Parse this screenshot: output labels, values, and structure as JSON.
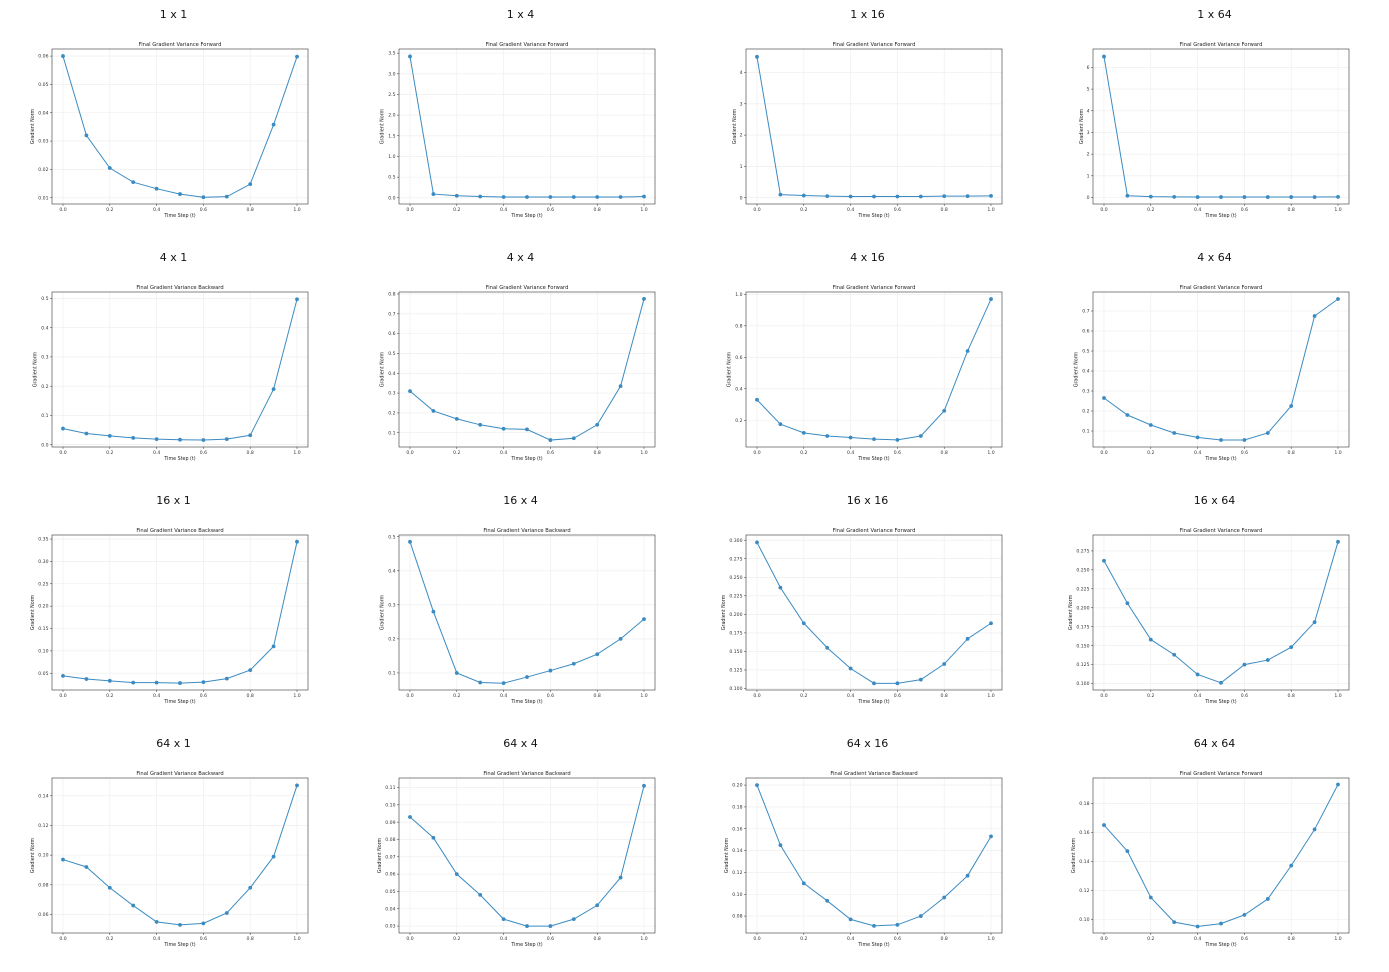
{
  "figure": {
    "x_tick_labels": [
      "0.0",
      "0.2",
      "0.4",
      "0.6",
      "0.8",
      "1.0"
    ],
    "xlabel": "Time Step (t)",
    "ylabel": "Gradient Norm",
    "line_color": "#3b8bc2"
  },
  "chart_data": [
    {
      "type": "line",
      "panel_title": "1 x 1",
      "title": "Final Gradient Variance Forward",
      "xlabel": "Time Step (t)",
      "ylabel": "Gradient Norm",
      "x": [
        0.0,
        0.1,
        0.2,
        0.3,
        0.4,
        0.5,
        0.6,
        0.7,
        0.8,
        0.9,
        1.0
      ],
      "y": [
        0.06,
        0.032,
        0.0205,
        0.0155,
        0.0132,
        0.0113,
        0.0102,
        0.0104,
        0.0148,
        0.0358,
        0.0598
      ],
      "ylim": [
        0.0078,
        0.0625
      ],
      "yticks": [
        0.01,
        0.02,
        0.03,
        0.04,
        0.05,
        0.06
      ],
      "ytick_labels": [
        "0.01",
        "0.02",
        "0.03",
        "0.04",
        "0.05",
        "0.06"
      ]
    },
    {
      "type": "line",
      "panel_title": "1 x 4",
      "title": "Final Gradient Variance Forward",
      "xlabel": "Time Step (t)",
      "ylabel": "Gradient Norm",
      "x": [
        0.0,
        0.1,
        0.2,
        0.3,
        0.4,
        0.5,
        0.6,
        0.7,
        0.8,
        0.9,
        1.0
      ],
      "y": [
        3.42,
        0.09,
        0.05,
        0.03,
        0.02,
        0.02,
        0.02,
        0.02,
        0.02,
        0.02,
        0.03
      ],
      "ylim": [
        -0.15,
        3.6
      ],
      "yticks": [
        0.0,
        0.5,
        1.0,
        1.5,
        2.0,
        2.5,
        3.0,
        3.5
      ],
      "ytick_labels": [
        "0.0",
        "0.5",
        "1.0",
        "1.5",
        "2.0",
        "2.5",
        "3.0",
        "3.5"
      ]
    },
    {
      "type": "line",
      "panel_title": "1 x 16",
      "title": "Final Gradient Variance Forward",
      "xlabel": "Time Step (t)",
      "ylabel": "Gradient Norm",
      "x": [
        0.0,
        0.1,
        0.2,
        0.3,
        0.4,
        0.5,
        0.6,
        0.7,
        0.8,
        0.9,
        1.0
      ],
      "y": [
        4.5,
        0.1,
        0.07,
        0.05,
        0.04,
        0.04,
        0.04,
        0.04,
        0.05,
        0.05,
        0.06
      ],
      "ylim": [
        -0.2,
        4.75
      ],
      "yticks": [
        0,
        1,
        2,
        3,
        4
      ],
      "ytick_labels": [
        "0",
        "1",
        "2",
        "3",
        "4"
      ]
    },
    {
      "type": "line",
      "panel_title": "1 x 64",
      "title": "Final Gradient Variance Forward",
      "xlabel": "Time Step (t)",
      "ylabel": "Gradient Norm",
      "x": [
        0.0,
        0.1,
        0.2,
        0.3,
        0.4,
        0.5,
        0.6,
        0.7,
        0.8,
        0.9,
        1.0
      ],
      "y": [
        6.5,
        0.08,
        0.04,
        0.03,
        0.02,
        0.02,
        0.02,
        0.02,
        0.02,
        0.02,
        0.03
      ],
      "ylim": [
        -0.3,
        6.85
      ],
      "yticks": [
        0,
        1,
        2,
        3,
        4,
        5,
        6
      ],
      "ytick_labels": [
        "0",
        "1",
        "2",
        "3",
        "4",
        "5",
        "6"
      ]
    },
    {
      "type": "line",
      "panel_title": "4 x 1",
      "title": "Final Gradient Variance Backward",
      "xlabel": "Time Step (t)",
      "ylabel": "Gradient Norm",
      "x": [
        0.0,
        0.1,
        0.2,
        0.3,
        0.4,
        0.5,
        0.6,
        0.7,
        0.8,
        0.9,
        1.0
      ],
      "y": [
        0.055,
        0.038,
        0.03,
        0.023,
        0.019,
        0.017,
        0.016,
        0.019,
        0.032,
        0.19,
        0.497
      ],
      "ylim": [
        -0.008,
        0.522
      ],
      "yticks": [
        0.0,
        0.1,
        0.2,
        0.3,
        0.4,
        0.5
      ],
      "ytick_labels": [
        "0.0",
        "0.1",
        "0.2",
        "0.3",
        "0.4",
        "0.5"
      ]
    },
    {
      "type": "line",
      "panel_title": "4 x 4",
      "title": "Final Gradient Variance Forward",
      "xlabel": "Time Step (t)",
      "ylabel": "Gradient Norm",
      "x": [
        0.0,
        0.1,
        0.2,
        0.3,
        0.4,
        0.5,
        0.6,
        0.7,
        0.8,
        0.9,
        1.0
      ],
      "y": [
        0.31,
        0.21,
        0.17,
        0.14,
        0.12,
        0.117,
        0.063,
        0.072,
        0.14,
        0.335,
        0.775
      ],
      "ylim": [
        0.028,
        0.81
      ],
      "yticks": [
        0.1,
        0.2,
        0.3,
        0.4,
        0.5,
        0.6,
        0.7,
        0.8
      ],
      "ytick_labels": [
        "0.1",
        "0.2",
        "0.3",
        "0.4",
        "0.5",
        "0.6",
        "0.7",
        "0.8"
      ]
    },
    {
      "type": "line",
      "panel_title": "4 x 16",
      "title": "Final Gradient Variance Forward",
      "xlabel": "Time Step (t)",
      "ylabel": "Gradient Norm",
      "x": [
        0.0,
        0.1,
        0.2,
        0.3,
        0.4,
        0.5,
        0.6,
        0.7,
        0.8,
        0.9,
        1.0
      ],
      "y": [
        0.33,
        0.175,
        0.12,
        0.1,
        0.09,
        0.08,
        0.075,
        0.1,
        0.26,
        0.64,
        0.97
      ],
      "ylim": [
        0.03,
        1.015
      ],
      "yticks": [
        0.2,
        0.4,
        0.6,
        0.8,
        1.0
      ],
      "ytick_labels": [
        "0.2",
        "0.4",
        "0.6",
        "0.8",
        "1.0"
      ]
    },
    {
      "type": "line",
      "panel_title": "4 x 64",
      "title": "Final Gradient Variance Forward",
      "xlabel": "Time Step (t)",
      "ylabel": "Gradient Norm",
      "x": [
        0.0,
        0.1,
        0.2,
        0.3,
        0.4,
        0.5,
        0.6,
        0.7,
        0.8,
        0.9,
        1.0
      ],
      "y": [
        0.265,
        0.18,
        0.13,
        0.09,
        0.068,
        0.055,
        0.055,
        0.09,
        0.225,
        0.675,
        0.76
      ],
      "ylim": [
        0.02,
        0.795
      ],
      "yticks": [
        0.1,
        0.2,
        0.3,
        0.4,
        0.5,
        0.6,
        0.7
      ],
      "ytick_labels": [
        "0.1",
        "0.2",
        "0.3",
        "0.4",
        "0.5",
        "0.6",
        "0.7"
      ]
    },
    {
      "type": "line",
      "panel_title": "16 x 1",
      "title": "Final Gradient Variance Backward",
      "xlabel": "Time Step (t)",
      "ylabel": "Gradient Norm",
      "x": [
        0.0,
        0.1,
        0.2,
        0.3,
        0.4,
        0.5,
        0.6,
        0.7,
        0.8,
        0.9,
        1.0
      ],
      "y": [
        0.044,
        0.037,
        0.033,
        0.029,
        0.029,
        0.028,
        0.03,
        0.038,
        0.057,
        0.11,
        0.344
      ],
      "ylim": [
        0.0125,
        0.359
      ],
      "yticks": [
        0.05,
        0.1,
        0.15,
        0.2,
        0.25,
        0.3,
        0.35
      ],
      "ytick_labels": [
        "0.05",
        "0.10",
        "0.15",
        "0.20",
        "0.25",
        "0.30",
        "0.35"
      ]
    },
    {
      "type": "line",
      "panel_title": "16 x 4",
      "title": "Final Gradient Variance Backward",
      "xlabel": "Time Step (t)",
      "ylabel": "Gradient Norm",
      "x": [
        0.0,
        0.1,
        0.2,
        0.3,
        0.4,
        0.5,
        0.6,
        0.7,
        0.8,
        0.9,
        1.0
      ],
      "y": [
        0.485,
        0.28,
        0.1,
        0.072,
        0.07,
        0.088,
        0.107,
        0.127,
        0.155,
        0.2,
        0.258
      ],
      "ylim": [
        0.05,
        0.505
      ],
      "yticks": [
        0.1,
        0.2,
        0.3,
        0.4,
        0.5
      ],
      "ytick_labels": [
        "0.1",
        "0.2",
        "0.3",
        "0.4",
        "0.5"
      ]
    },
    {
      "type": "line",
      "panel_title": "16 x 16",
      "title": "Final Gradient Variance Forward",
      "xlabel": "Time Step (t)",
      "ylabel": "Gradient Norm",
      "x": [
        0.0,
        0.1,
        0.2,
        0.3,
        0.4,
        0.5,
        0.6,
        0.7,
        0.8,
        0.9,
        1.0
      ],
      "y": [
        0.297,
        0.236,
        0.188,
        0.155,
        0.127,
        0.107,
        0.107,
        0.112,
        0.133,
        0.167,
        0.188
      ],
      "ylim": [
        0.098,
        0.307
      ],
      "yticks": [
        0.1,
        0.125,
        0.15,
        0.175,
        0.2,
        0.225,
        0.25,
        0.275,
        0.3
      ],
      "ytick_labels": [
        "0.100",
        "0.125",
        "0.150",
        "0.175",
        "0.200",
        "0.225",
        "0.250",
        "0.275",
        "0.300"
      ]
    },
    {
      "type": "line",
      "panel_title": "16 x 64",
      "title": "Final Gradient Variance Forward",
      "xlabel": "Time Step (t)",
      "ylabel": "Gradient Norm",
      "x": [
        0.0,
        0.1,
        0.2,
        0.3,
        0.4,
        0.5,
        0.6,
        0.7,
        0.8,
        0.9,
        1.0
      ],
      "y": [
        0.262,
        0.206,
        0.158,
        0.138,
        0.112,
        0.101,
        0.125,
        0.131,
        0.148,
        0.181,
        0.287
      ],
      "ylim": [
        0.0915,
        0.296
      ],
      "yticks": [
        0.1,
        0.125,
        0.15,
        0.175,
        0.2,
        0.225,
        0.25,
        0.275
      ],
      "ytick_labels": [
        "0.100",
        "0.125",
        "0.150",
        "0.175",
        "0.200",
        "0.225",
        "0.250",
        "0.275"
      ]
    },
    {
      "type": "line",
      "panel_title": "64 x 1",
      "title": "Final Gradient Variance Backward",
      "xlabel": "Time Step (t)",
      "ylabel": "Gradient Norm",
      "x": [
        0.0,
        0.1,
        0.2,
        0.3,
        0.4,
        0.5,
        0.6,
        0.7,
        0.8,
        0.9,
        1.0
      ],
      "y": [
        0.097,
        0.092,
        0.078,
        0.066,
        0.055,
        0.053,
        0.054,
        0.061,
        0.078,
        0.099,
        0.147
      ],
      "ylim": [
        0.0475,
        0.152
      ],
      "yticks": [
        0.06,
        0.08,
        0.1,
        0.12,
        0.14
      ],
      "ytick_labels": [
        "0.06",
        "0.08",
        "0.10",
        "0.12",
        "0.14"
      ]
    },
    {
      "type": "line",
      "panel_title": "64 x 4",
      "title": "Final Gradient Variance Backward",
      "xlabel": "Time Step (t)",
      "ylabel": "Gradient Norm",
      "x": [
        0.0,
        0.1,
        0.2,
        0.3,
        0.4,
        0.5,
        0.6,
        0.7,
        0.8,
        0.9,
        1.0
      ],
      "y": [
        0.093,
        0.081,
        0.06,
        0.048,
        0.034,
        0.03,
        0.03,
        0.034,
        0.042,
        0.058,
        0.111
      ],
      "ylim": [
        0.026,
        0.1155
      ],
      "yticks": [
        0.03,
        0.04,
        0.05,
        0.06,
        0.07,
        0.08,
        0.09,
        0.1,
        0.11
      ],
      "ytick_labels": [
        "0.03",
        "0.04",
        "0.05",
        "0.06",
        "0.07",
        "0.08",
        "0.09",
        "0.10",
        "0.11"
      ]
    },
    {
      "type": "line",
      "panel_title": "64 x 16",
      "title": "Final Gradient Variance Backward",
      "xlabel": "Time Step (t)",
      "ylabel": "Gradient Norm",
      "x": [
        0.0,
        0.1,
        0.2,
        0.3,
        0.4,
        0.5,
        0.6,
        0.7,
        0.8,
        0.9,
        1.0
      ],
      "y": [
        0.2,
        0.145,
        0.11,
        0.094,
        0.077,
        0.071,
        0.072,
        0.08,
        0.097,
        0.117,
        0.153
      ],
      "ylim": [
        0.0645,
        0.2065
      ],
      "yticks": [
        0.08,
        0.1,
        0.12,
        0.14,
        0.16,
        0.18,
        0.2
      ],
      "ytick_labels": [
        "0.08",
        "0.10",
        "0.12",
        "0.14",
        "0.16",
        "0.18",
        "0.20"
      ]
    },
    {
      "type": "line",
      "panel_title": "64 x 64",
      "title": "Final Gradient Variance Forward",
      "xlabel": "Time Step (t)",
      "ylabel": "Gradient Norm",
      "x": [
        0.0,
        0.1,
        0.2,
        0.3,
        0.4,
        0.5,
        0.6,
        0.7,
        0.8,
        0.9,
        1.0
      ],
      "y": [
        0.165,
        0.147,
        0.115,
        0.098,
        0.095,
        0.097,
        0.103,
        0.114,
        0.137,
        0.162,
        0.193
      ],
      "ylim": [
        0.0905,
        0.1975
      ],
      "yticks": [
        0.1,
        0.12,
        0.14,
        0.16,
        0.18
      ],
      "ytick_labels": [
        "0.10",
        "0.12",
        "0.14",
        "0.16",
        "0.18"
      ]
    }
  ]
}
